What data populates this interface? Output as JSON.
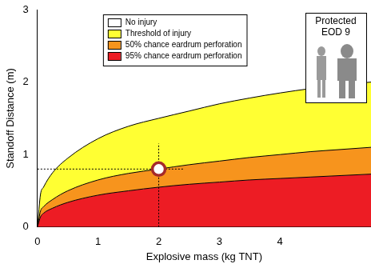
{
  "chart_data": {
    "type": "area",
    "x_label": "Explosive mass (kg TNT)",
    "y_label": "Standoff Distance (m)",
    "x": [
      0,
      0.05,
      0.1,
      0.25,
      0.5,
      1,
      1.5,
      2,
      2.5,
      3,
      3.5,
      4,
      4.5,
      5,
      5.5
    ],
    "series": [
      {
        "name": "95% chance eardrum perforation",
        "color": "#ed1c24",
        "values": [
          0,
          0.14,
          0.19,
          0.26,
          0.34,
          0.44,
          0.5,
          0.55,
          0.59,
          0.62,
          0.65,
          0.67,
          0.69,
          0.71,
          0.73
        ]
      },
      {
        "name": "50% chance eardrum perforation",
        "color": "#f7941d",
        "values": [
          0,
          0.22,
          0.28,
          0.38,
          0.5,
          0.65,
          0.74,
          0.8,
          0.86,
          0.91,
          0.96,
          1.0,
          1.04,
          1.07,
          1.1
        ]
      },
      {
        "name": "Threshold of injury",
        "color": "#ffff33",
        "values": [
          0,
          0.45,
          0.55,
          0.75,
          0.95,
          1.22,
          1.39,
          1.5,
          1.6,
          1.7,
          1.78,
          1.85,
          1.91,
          1.96,
          2.0
        ]
      },
      {
        "name": "No injury",
        "color": "#ffffff",
        "values": [
          null,
          null,
          null,
          null,
          null,
          null,
          null,
          null,
          null,
          null,
          null,
          null,
          null,
          null,
          null
        ]
      }
    ],
    "xlim": [
      0,
      5.5
    ],
    "xticks": [
      0,
      1,
      2,
      3,
      4
    ],
    "ylim": [
      0,
      3
    ],
    "yticks": [
      0,
      1,
      2,
      3
    ],
    "grid": false,
    "legend": "upper center",
    "highlight": {
      "x": 2,
      "y": 0.8,
      "color": "#a52a2a"
    },
    "inset_text": [
      "Protected",
      "EOD 9"
    ]
  }
}
